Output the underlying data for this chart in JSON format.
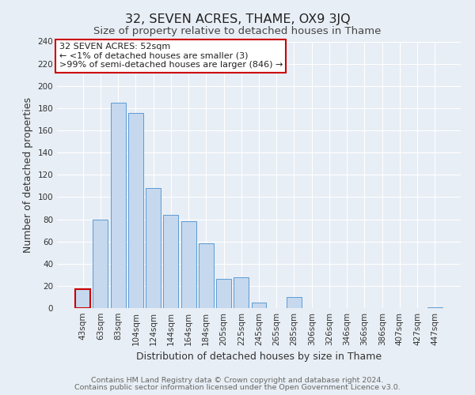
{
  "title": "32, SEVEN ACRES, THAME, OX9 3JQ",
  "subtitle": "Size of property relative to detached houses in Thame",
  "xlabel": "Distribution of detached houses by size in Thame",
  "ylabel": "Number of detached properties",
  "categories": [
    "43sqm",
    "63sqm",
    "83sqm",
    "104sqm",
    "124sqm",
    "144sqm",
    "164sqm",
    "184sqm",
    "205sqm",
    "225sqm",
    "245sqm",
    "265sqm",
    "285sqm",
    "306sqm",
    "326sqm",
    "346sqm",
    "366sqm",
    "386sqm",
    "407sqm",
    "427sqm",
    "447sqm"
  ],
  "values": [
    17,
    80,
    185,
    176,
    108,
    84,
    78,
    58,
    26,
    28,
    5,
    0,
    10,
    0,
    0,
    0,
    0,
    0,
    0,
    0,
    1
  ],
  "bar_color": "#c5d8ee",
  "bar_edge_color": "#5b9bd5",
  "highlight_bar_index": 0,
  "highlight_edge_color": "#cc0000",
  "annotation_title": "32 SEVEN ACRES: 52sqm",
  "annotation_line1": "← <1% of detached houses are smaller (3)",
  "annotation_line2": ">99% of semi-detached houses are larger (846) →",
  "annotation_box_edge_color": "#cc0000",
  "ylim": [
    0,
    240
  ],
  "yticks": [
    0,
    20,
    40,
    60,
    80,
    100,
    120,
    140,
    160,
    180,
    200,
    220,
    240
  ],
  "footer_line1": "Contains HM Land Registry data © Crown copyright and database right 2024.",
  "footer_line2": "Contains public sector information licensed under the Open Government Licence v3.0.",
  "background_color": "#e8eef5",
  "plot_bg_color": "#e8eef5",
  "title_fontsize": 11.5,
  "subtitle_fontsize": 9.5,
  "axis_label_fontsize": 9,
  "tick_fontsize": 7.5,
  "footer_fontsize": 6.8
}
